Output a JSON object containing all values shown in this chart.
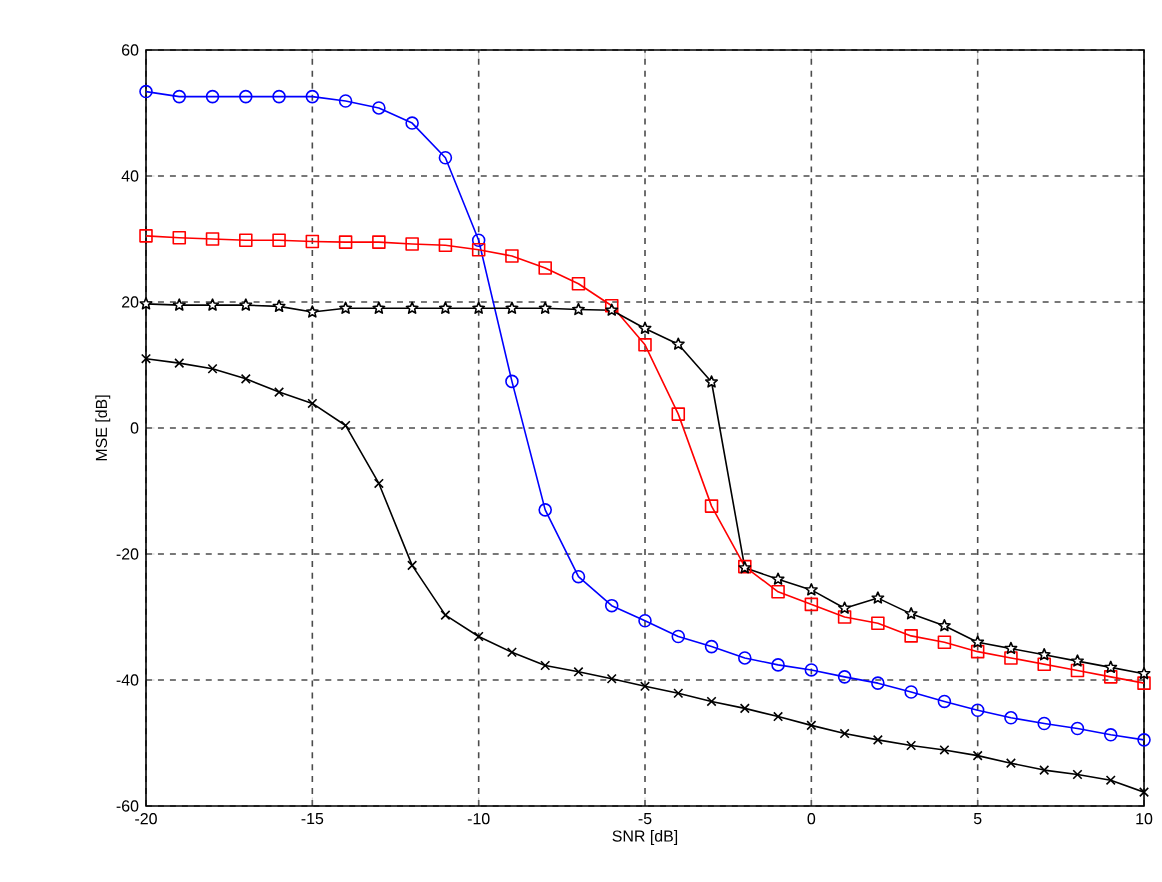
{
  "chart_data": {
    "type": "line",
    "xlabel": "SNR [dB]",
    "ylabel": "MSE [dB]",
    "x": [
      -20,
      -19,
      -18,
      -17,
      -16,
      -15,
      -14,
      -13,
      -12,
      -11,
      -10,
      -9,
      -8,
      -7,
      -6,
      -5,
      -4,
      -3,
      -2,
      -1,
      0,
      1,
      2,
      3,
      4,
      5,
      6,
      7,
      8,
      9,
      10
    ],
    "xlim": [
      -20,
      10
    ],
    "ylim": [
      -60,
      60
    ],
    "xticks": [
      -20,
      -15,
      -10,
      -5,
      0,
      5,
      10
    ],
    "yticks": [
      -60,
      -40,
      -20,
      0,
      20,
      40,
      60
    ],
    "grid": true,
    "line_style": "solid",
    "series": [
      {
        "color": "#0000ff",
        "marker": "circle",
        "values": [
          53.4,
          52.6,
          52.6,
          52.6,
          52.6,
          52.6,
          51.9,
          50.8,
          48.4,
          42.9,
          29.8,
          7.4,
          -13,
          -23.6,
          -28.2,
          -30.6,
          -33.1,
          -34.7,
          -36.5,
          -37.6,
          -38.4,
          -39.5,
          -40.5,
          -41.9,
          -43.4,
          -44.8,
          -46,
          -46.9,
          -47.7,
          -48.7,
          -49.5
        ]
      },
      {
        "color": "#ff0000",
        "marker": "square",
        "values": [
          30.5,
          30.2,
          30,
          29.8,
          29.8,
          29.6,
          29.5,
          29.5,
          29.2,
          29,
          28.3,
          27.3,
          25.4,
          22.9,
          19.4,
          13.2,
          2.2,
          -12.4,
          -22,
          -26,
          -28,
          -30,
          -31,
          -33,
          -34,
          -35.5,
          -36.5,
          -37.5,
          -38.5,
          -39.5,
          -40.5
        ]
      },
      {
        "color": "#000000",
        "marker": "star",
        "values": [
          19.7,
          19.5,
          19.5,
          19.5,
          19.3,
          18.4,
          19,
          19,
          19,
          19,
          19,
          19,
          19,
          18.8,
          18.7,
          15.8,
          13.3,
          7.3,
          -22.2,
          -24,
          -25.7,
          -28.6,
          -27,
          -29.5,
          -31.4,
          -34,
          -35,
          -36,
          -37,
          -38,
          -39
        ]
      },
      {
        "color": "#000000",
        "marker": "cross",
        "values": [
          11,
          10.3,
          9.4,
          7.8,
          5.7,
          3.9,
          0.4,
          -8.8,
          -21.8,
          -29.7,
          -33.1,
          -35.6,
          -37.7,
          -38.7,
          -39.8,
          -41,
          -42.1,
          -43.4,
          -44.5,
          -45.8,
          -47.2,
          -48.5,
          -49.5,
          -50.4,
          -51.1,
          -52,
          -53.2,
          -54.3,
          -55,
          -55.9,
          -57.8
        ]
      }
    ]
  }
}
